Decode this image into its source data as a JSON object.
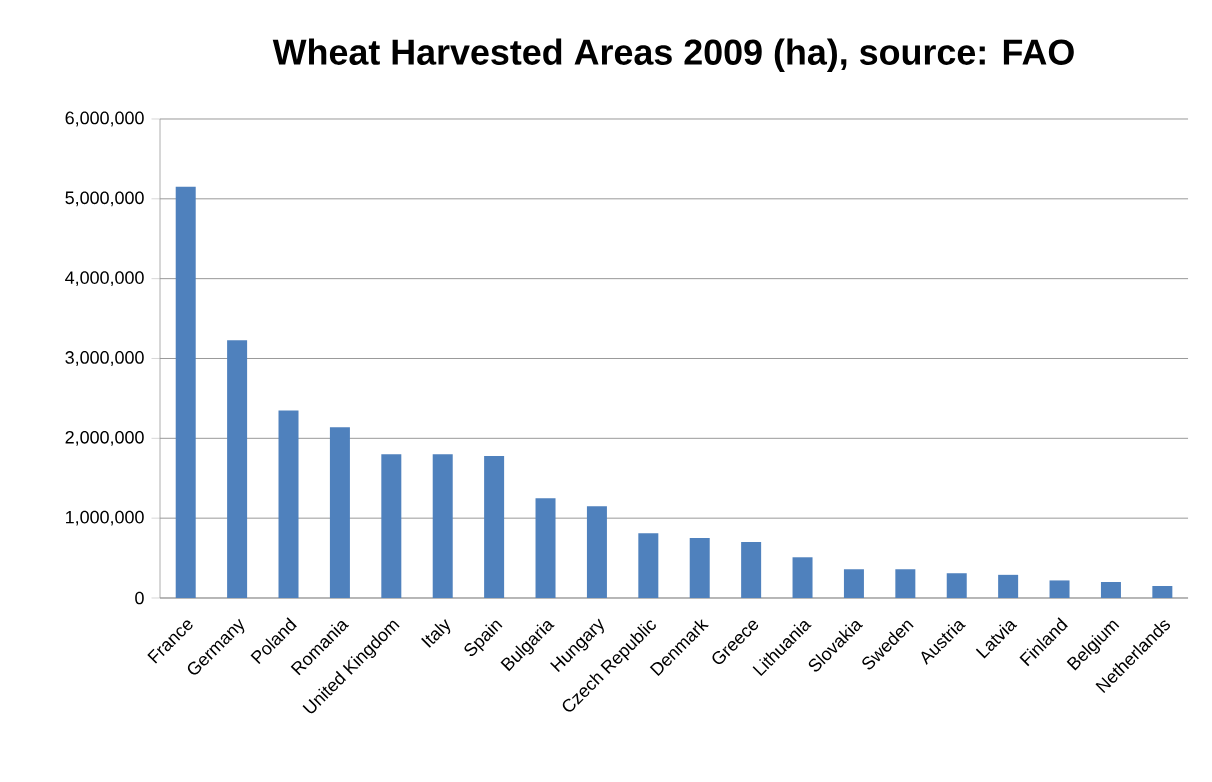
{
  "chart_data": {
    "type": "bar",
    "title": "Wheat Harvested Areas 2009  (ha), source: FAO",
    "categories": [
      "France",
      "Germany",
      "Poland",
      "Romania",
      "United Kingdom",
      "Italy",
      "Spain",
      "Bulgaria",
      "Hungary",
      "Czech Republic",
      "Denmark",
      "Greece",
      "Lithuania",
      "Slovakia",
      "Sweden",
      "Austria",
      "Latvia",
      "Finland",
      "Belgium",
      "Netherlands"
    ],
    "values": [
      5150000,
      3230000,
      2350000,
      2140000,
      1800000,
      1800000,
      1780000,
      1250000,
      1150000,
      810000,
      750000,
      700000,
      510000,
      360000,
      360000,
      310000,
      290000,
      220000,
      200000,
      150000
    ],
    "color": "#4f81bd",
    "ylim": [
      0,
      6000000
    ],
    "yticks": [
      {
        "value": 0,
        "label": "0"
      },
      {
        "value": 1000000,
        "label": "1,000,000"
      },
      {
        "value": 2000000,
        "label": "2,000,000"
      },
      {
        "value": 3000000,
        "label": "3,000,000"
      },
      {
        "value": 4000000,
        "label": "4,000,000"
      },
      {
        "value": 5000000,
        "label": "5,000,000"
      },
      {
        "value": 6000000,
        "label": "6,000,000"
      }
    ],
    "grid": "y"
  }
}
